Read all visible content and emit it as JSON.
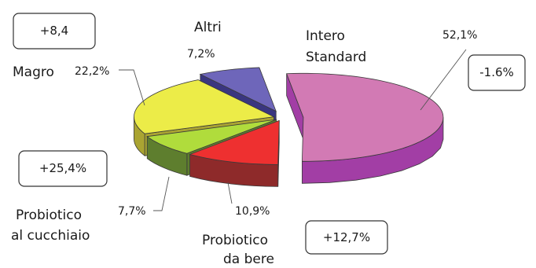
{
  "chart_data": {
    "type": "pie",
    "style": "3d-exploded",
    "slices": [
      {
        "category": "Intero\nStandard",
        "value": 52.1,
        "label": "52,1%",
        "change": "-1.6%",
        "color": "#d27ab4",
        "side_color": "#a23ea5"
      },
      {
        "category": "Probiotico\nda bere",
        "value": 10.9,
        "label": "10,9%",
        "change": "+12,7%",
        "color": "#ee3030",
        "side_color": "#8e2a2a"
      },
      {
        "category": "Probiotico\nal cucchiaio",
        "value": 7.7,
        "label": "7,7%",
        "change": "+25,4%",
        "color": "#b0dc3c",
        "side_color": "#5e7e2e"
      },
      {
        "category": "Magro",
        "value": 22.2,
        "label": "22,2%",
        "change": "+8,4",
        "color": "#ecec48",
        "side_color": "#aaa432"
      },
      {
        "category": "Altri",
        "value": 7.2,
        "label": "7,2%",
        "change": "",
        "color": "#6e66ba",
        "side_color": "#3a3680"
      }
    ]
  }
}
